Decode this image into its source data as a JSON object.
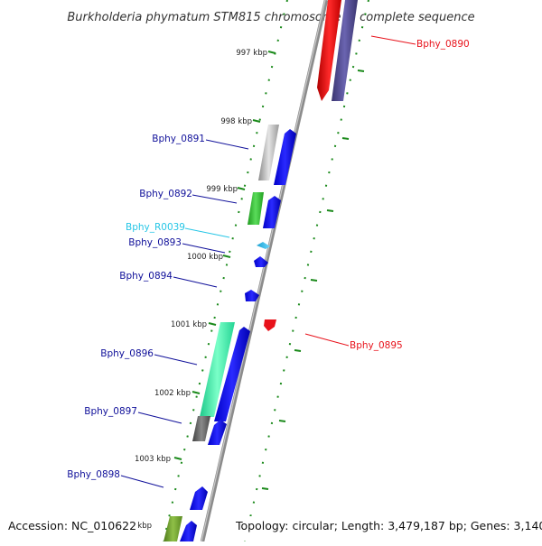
{
  "title": "Burkholderia phymatum STM815 chromosome 1, complete sequence",
  "footer": {
    "accession": "Accession: NC_010622",
    "topology": "Topology: circular; Length: 3,479,187 bp; Genes: 3,140"
  },
  "scale_marks": [
    "997 kbp",
    "998 kbp",
    "999 kbp",
    "1000 kbp",
    "1001 kbp",
    "1002 kbp",
    "1003 kbp"
  ],
  "partial_scale_mark": "kbp",
  "genes": [
    {
      "name": "Bphy_0890",
      "strand": "plus",
      "color": "#e8121b"
    },
    {
      "name": "Bphy_0891",
      "strand": "minus",
      "color": "#10109a"
    },
    {
      "name": "Bphy_0892",
      "strand": "minus",
      "color": "#10109a"
    },
    {
      "name": "Bphy_R0039",
      "strand": "minus",
      "color": "#26c6e6"
    },
    {
      "name": "Bphy_0893",
      "strand": "minus",
      "color": "#10109a"
    },
    {
      "name": "Bphy_0894",
      "strand": "minus",
      "color": "#10109a"
    },
    {
      "name": "Bphy_0895",
      "strand": "plus",
      "color": "#e8121b"
    },
    {
      "name": "Bphy_0896",
      "strand": "minus",
      "color": "#10109a"
    },
    {
      "name": "Bphy_0897",
      "strand": "minus",
      "color": "#10109a"
    },
    {
      "name": "Bphy_0898",
      "strand": "minus",
      "color": "#10109a"
    }
  ]
}
